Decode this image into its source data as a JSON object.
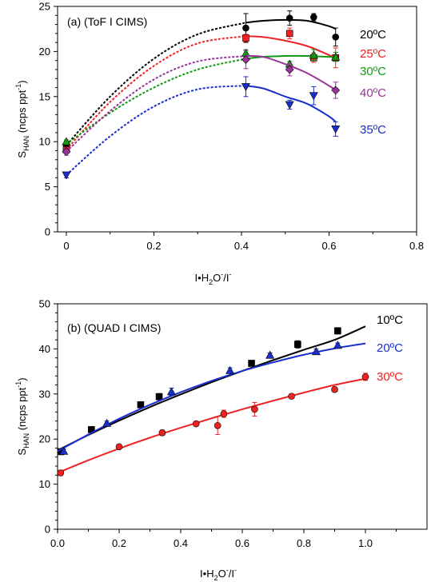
{
  "chart_data": [
    {
      "type": "scatter",
      "panel_label": "(a) (ToF I  CIMS)",
      "xlabel": "I•H₂O⁻/I⁻",
      "ylabel": "S_HAN (ncps ppt⁻¹)",
      "ylabel_main": "S",
      "ylabel_sub": "HAN",
      "ylabel_rest": " (ncps ppt",
      "ylabel_sup": "-1",
      "ylabel_close": ")",
      "xlabel_parts": [
        "I•H",
        "2",
        "O",
        "-",
        "/I",
        "-"
      ],
      "xlim": [
        -0.02,
        0.8
      ],
      "ylim": [
        0,
        25
      ],
      "xticks": [
        "0",
        "0.2",
        "0.4",
        "0.6",
        "0.8"
      ],
      "yticks": [
        "0",
        "5",
        "10",
        "15",
        "20",
        "25"
      ],
      "grid": false,
      "legend_position": "right",
      "series": [
        {
          "name": "20ºC",
          "color": "#000000",
          "marker": "circle",
          "points": [
            {
              "x": 0.0,
              "y": 9.6,
              "err": 0.3
            },
            {
              "x": 0.41,
              "y": 22.6,
              "err": 1.6
            },
            {
              "x": 0.51,
              "y": 23.7,
              "err": 0.8
            },
            {
              "x": 0.565,
              "y": 23.8,
              "err": 0.4
            },
            {
              "x": 0.615,
              "y": 21.6,
              "err": 1.0
            }
          ],
          "fit_dashed": [
            [
              0.0,
              9.6
            ],
            [
              0.1,
              15.0
            ],
            [
              0.2,
              19.2
            ],
            [
              0.3,
              21.9
            ],
            [
              0.41,
              23.2
            ]
          ],
          "fit_solid": [
            [
              0.41,
              23.2
            ],
            [
              0.45,
              23.4
            ],
            [
              0.5,
              23.5
            ],
            [
              0.55,
              23.4
            ],
            [
              0.6,
              22.8
            ],
            [
              0.615,
              22.5
            ]
          ]
        },
        {
          "name": "25ºC",
          "color": "#ee2222",
          "marker": "square",
          "points": [
            {
              "x": 0.0,
              "y": 9.1,
              "err": 0.3
            },
            {
              "x": 0.41,
              "y": 21.5,
              "err": 0.4
            },
            {
              "x": 0.51,
              "y": 22.0,
              "err": 0.6
            },
            {
              "x": 0.565,
              "y": 19.3,
              "err": 0.5
            },
            {
              "x": 0.615,
              "y": 19.3,
              "err": 1.1
            }
          ],
          "fit_dashed": [
            [
              0.0,
              9.1
            ],
            [
              0.1,
              14.4
            ],
            [
              0.2,
              18.4
            ],
            [
              0.3,
              20.9
            ],
            [
              0.41,
              21.7
            ]
          ],
          "fit_solid": [
            [
              0.41,
              21.7
            ],
            [
              0.45,
              21.6
            ],
            [
              0.5,
              21.2
            ],
            [
              0.55,
              20.6
            ],
            [
              0.6,
              19.6
            ],
            [
              0.615,
              19.2
            ]
          ]
        },
        {
          "name": "30ºC",
          "color": "#119911",
          "marker": "triangle-up",
          "points": [
            {
              "x": 0.0,
              "y": 10.0,
              "err": 0.2
            },
            {
              "x": 0.41,
              "y": 19.8,
              "err": 0.4
            },
            {
              "x": 0.51,
              "y": 18.6,
              "err": 0.3
            },
            {
              "x": 0.565,
              "y": 19.6,
              "err": 0.6
            },
            {
              "x": 0.615,
              "y": 19.4,
              "err": 0.5
            }
          ],
          "fit_dashed": [
            [
              0.0,
              9.7
            ],
            [
              0.1,
              13.2
            ],
            [
              0.2,
              16.0
            ],
            [
              0.3,
              18.0
            ],
            [
              0.41,
              19.2
            ]
          ],
          "fit_solid": [
            [
              0.41,
              19.2
            ],
            [
              0.45,
              19.4
            ],
            [
              0.5,
              19.5
            ],
            [
              0.55,
              19.5
            ],
            [
              0.6,
              19.4
            ],
            [
              0.615,
              19.4
            ]
          ]
        },
        {
          "name": "40ºC",
          "color": "#993399",
          "marker": "diamond",
          "points": [
            {
              "x": 0.0,
              "y": 8.9,
              "err": 0.4
            },
            {
              "x": 0.41,
              "y": 19.1,
              "err": 1.0
            },
            {
              "x": 0.51,
              "y": 18.0,
              "err": 0.7
            },
            {
              "x": 0.615,
              "y": 15.7,
              "err": 0.9
            }
          ],
          "fit_dashed": [
            [
              0.0,
              8.9
            ],
            [
              0.1,
              13.4
            ],
            [
              0.2,
              16.9
            ],
            [
              0.3,
              18.9
            ],
            [
              0.41,
              19.5
            ]
          ],
          "fit_solid": [
            [
              0.41,
              19.5
            ],
            [
              0.45,
              19.4
            ],
            [
              0.5,
              18.6
            ],
            [
              0.55,
              17.6
            ],
            [
              0.6,
              16.2
            ],
            [
              0.615,
              15.7
            ]
          ]
        },
        {
          "name": "35ºC",
          "color": "#1a2ecc",
          "marker": "triangle-down",
          "points": [
            {
              "x": 0.0,
              "y": 6.3,
              "err": 0.3
            },
            {
              "x": 0.41,
              "y": 16.1,
              "err": 1.1
            },
            {
              "x": 0.51,
              "y": 14.1,
              "err": 0.5
            },
            {
              "x": 0.565,
              "y": 15.1,
              "err": 1.0
            },
            {
              "x": 0.615,
              "y": 11.4,
              "err": 0.8
            }
          ],
          "fit_dashed": [
            [
              0.0,
              6.3
            ],
            [
              0.1,
              10.6
            ],
            [
              0.2,
              13.9
            ],
            [
              0.3,
              15.8
            ],
            [
              0.41,
              16.2
            ]
          ],
          "fit_solid": [
            [
              0.41,
              16.2
            ],
            [
              0.45,
              15.9
            ],
            [
              0.5,
              15.0
            ],
            [
              0.55,
              14.2
            ],
            [
              0.6,
              12.8
            ],
            [
              0.615,
              12.2
            ]
          ]
        }
      ]
    },
    {
      "type": "scatter",
      "panel_label": "(b) (QUAD I  CIMS)",
      "xlabel": "I•H₂O⁻/I⁻",
      "ylabel": "S_HAN (ncps ppt⁻¹)",
      "ylabel_main": "S",
      "ylabel_sub": "HAN",
      "ylabel_rest": " (ncps ppt",
      "ylabel_sup": "-1",
      "ylabel_close": ")",
      "xlabel_parts": [
        "I•H",
        "2",
        "O",
        "-",
        "/I",
        "-"
      ],
      "xlim": [
        0,
        1.2
      ],
      "ylim": [
        0,
        50
      ],
      "xticks": [
        "0.0",
        "0.2",
        "0.4",
        "0.6",
        "0.8",
        "1.0"
      ],
      "yticks": [
        "0",
        "10",
        "20",
        "30",
        "40",
        "50"
      ],
      "grid": false,
      "legend_position": "right",
      "series": [
        {
          "name": "10ºC",
          "color": "#000000",
          "marker": "square",
          "points": [
            {
              "x": 0.01,
              "y": 17.2,
              "err": 0.4
            },
            {
              "x": 0.11,
              "y": 22.1,
              "err": 0.5
            },
            {
              "x": 0.27,
              "y": 27.6,
              "err": 0.6
            },
            {
              "x": 0.33,
              "y": 29.4,
              "err": 0.7
            },
            {
              "x": 0.63,
              "y": 36.8,
              "err": 0.6
            },
            {
              "x": 0.78,
              "y": 41.0,
              "err": 0.8
            },
            {
              "x": 0.91,
              "y": 44.0,
              "err": 0.7
            }
          ],
          "fit_solid": [
            [
              0.0,
              17.5
            ],
            [
              0.1,
              20.9
            ],
            [
              0.2,
              24.1
            ],
            [
              0.3,
              27.1
            ],
            [
              0.4,
              29.9
            ],
            [
              0.5,
              32.6
            ],
            [
              0.6,
              35.1
            ],
            [
              0.7,
              37.5
            ],
            [
              0.8,
              39.8
            ],
            [
              0.9,
              42.0
            ],
            [
              1.0,
              45.0
            ]
          ]
        },
        {
          "name": "20ºC",
          "color": "#1a2ecc",
          "marker": "triangle-up",
          "points": [
            {
              "x": 0.02,
              "y": 17.3,
              "err": 0.5
            },
            {
              "x": 0.16,
              "y": 23.5,
              "err": 0.5
            },
            {
              "x": 0.37,
              "y": 30.5,
              "err": 0.8
            },
            {
              "x": 0.56,
              "y": 35.2,
              "err": 0.6
            },
            {
              "x": 0.69,
              "y": 38.6,
              "err": 0.5
            },
            {
              "x": 0.84,
              "y": 39.4,
              "err": 0.6
            },
            {
              "x": 0.91,
              "y": 40.8,
              "err": 0.5
            }
          ],
          "fit_solid": [
            [
              0.0,
              17.3
            ],
            [
              0.1,
              21.0
            ],
            [
              0.2,
              24.5
            ],
            [
              0.3,
              27.6
            ],
            [
              0.4,
              30.4
            ],
            [
              0.5,
              32.9
            ],
            [
              0.6,
              35.1
            ],
            [
              0.7,
              37.0
            ],
            [
              0.8,
              38.7
            ],
            [
              0.9,
              40.1
            ],
            [
              1.0,
              41.2
            ]
          ]
        },
        {
          "name": "30ºC",
          "color": "#ee2222",
          "marker": "circle",
          "points": [
            {
              "x": 0.01,
              "y": 12.5,
              "err": 0.6
            },
            {
              "x": 0.2,
              "y": 18.3,
              "err": 0.4
            },
            {
              "x": 0.34,
              "y": 21.4,
              "err": 0.6
            },
            {
              "x": 0.45,
              "y": 23.4,
              "err": 0.5
            },
            {
              "x": 0.52,
              "y": 23.0,
              "err": 2.0
            },
            {
              "x": 0.54,
              "y": 25.6,
              "err": 0.8
            },
            {
              "x": 0.64,
              "y": 26.6,
              "err": 1.5
            },
            {
              "x": 0.76,
              "y": 29.5,
              "err": 0.5
            },
            {
              "x": 0.9,
              "y": 31.0,
              "err": 0.5
            },
            {
              "x": 1.0,
              "y": 33.8,
              "err": 0.8
            }
          ],
          "fit_solid": [
            [
              0.0,
              12.5
            ],
            [
              0.1,
              15.3
            ],
            [
              0.2,
              17.9
            ],
            [
              0.3,
              20.3
            ],
            [
              0.4,
              22.5
            ],
            [
              0.5,
              24.6
            ],
            [
              0.6,
              26.6
            ],
            [
              0.7,
              28.5
            ],
            [
              0.8,
              30.3
            ],
            [
              0.9,
              32.0
            ],
            [
              1.0,
              33.4
            ]
          ]
        }
      ]
    }
  ]
}
